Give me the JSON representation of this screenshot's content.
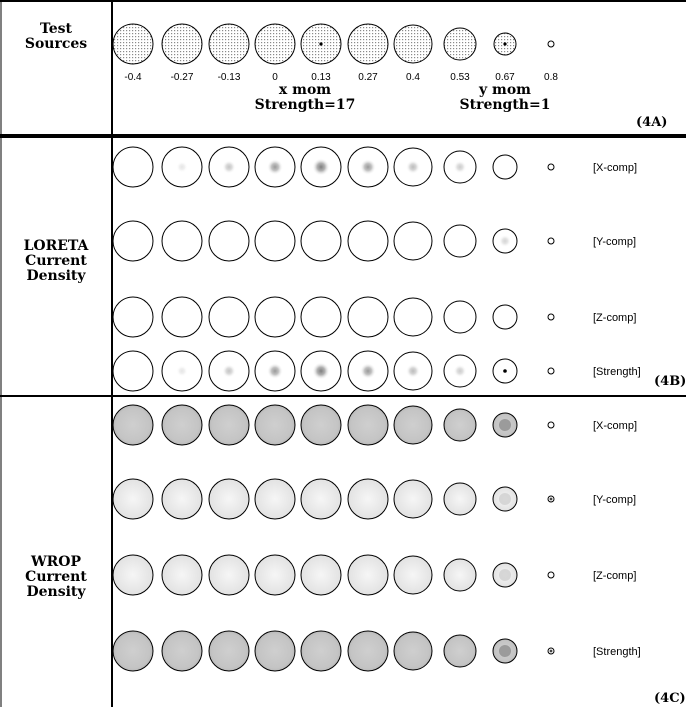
{
  "sections": {
    "test": {
      "label": [
        "Test",
        "Sources"
      ],
      "tag": "(4A)"
    },
    "loreta": {
      "label": [
        "LORETA",
        "Current",
        "Density"
      ],
      "tag": "(4B)"
    },
    "wrop": {
      "label": [
        "WROP",
        "Current",
        "Density"
      ],
      "tag": "(4C)"
    }
  },
  "test_sources": {
    "positions": [
      "-0.4",
      "-0.27",
      "-0.13",
      "0",
      "0.13",
      "0.27",
      "0.4",
      "0.53",
      "0.67",
      "0.8"
    ],
    "x_mom": {
      "label": "x mom",
      "strength": "Strength=17"
    },
    "y_mom": {
      "label": "y mom",
      "strength": "Strength=1"
    }
  },
  "row_labels": {
    "loreta": [
      "[X-comp]",
      "[Y-comp]",
      "[Z-comp]",
      "[Strength]"
    ],
    "wrop": [
      "[X-comp]",
      "[Y-comp]",
      "[Z-comp]",
      "[Strength]"
    ]
  },
  "colors": {
    "wrop_fill": "#c8c8c8",
    "wrop_light": "#ececec",
    "stipple": "#8a8a8a",
    "line": "#000000"
  }
}
